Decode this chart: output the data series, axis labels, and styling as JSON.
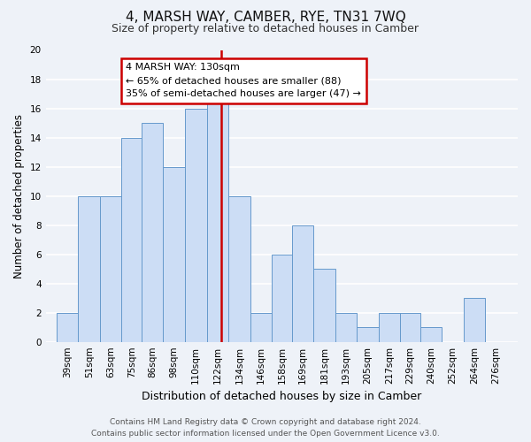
{
  "title": "4, MARSH WAY, CAMBER, RYE, TN31 7WQ",
  "subtitle": "Size of property relative to detached houses in Camber",
  "xlabel": "Distribution of detached houses by size in Camber",
  "ylabel": "Number of detached properties",
  "bar_labels": [
    "39sqm",
    "51sqm",
    "63sqm",
    "75sqm",
    "86sqm",
    "98sqm",
    "110sqm",
    "122sqm",
    "134sqm",
    "146sqm",
    "158sqm",
    "169sqm",
    "181sqm",
    "193sqm",
    "205sqm",
    "217sqm",
    "229sqm",
    "240sqm",
    "252sqm",
    "264sqm",
    "276sqm"
  ],
  "bar_values": [
    2,
    10,
    10,
    14,
    15,
    12,
    16,
    17,
    10,
    2,
    6,
    8,
    5,
    2,
    1,
    2,
    2,
    1,
    0,
    3,
    0
  ],
  "bar_edges": [
    39,
    51,
    63,
    75,
    86,
    98,
    110,
    122,
    134,
    146,
    158,
    169,
    181,
    193,
    205,
    217,
    229,
    240,
    252,
    264,
    276,
    288
  ],
  "bar_color": "#ccddf5",
  "bar_edge_color": "#6699cc",
  "vline_x": 130,
  "vline_color": "#cc0000",
  "annotation_title": "4 MARSH WAY: 130sqm",
  "annotation_line1": "← 65% of detached houses are smaller (88)",
  "annotation_line2": "35% of semi-detached houses are larger (47) →",
  "annotation_box_edge_color": "#cc0000",
  "ylim": [
    0,
    20
  ],
  "yticks": [
    0,
    2,
    4,
    6,
    8,
    10,
    12,
    14,
    16,
    18,
    20
  ],
  "footer_line1": "Contains HM Land Registry data © Crown copyright and database right 2024.",
  "footer_line2": "Contains public sector information licensed under the Open Government Licence v3.0.",
  "background_color": "#eef2f8",
  "grid_color": "#ffffff",
  "tick_label_fontsize": 7.5,
  "ylabel_fontsize": 8.5,
  "xlabel_fontsize": 9,
  "title_fontsize": 11,
  "subtitle_fontsize": 9
}
